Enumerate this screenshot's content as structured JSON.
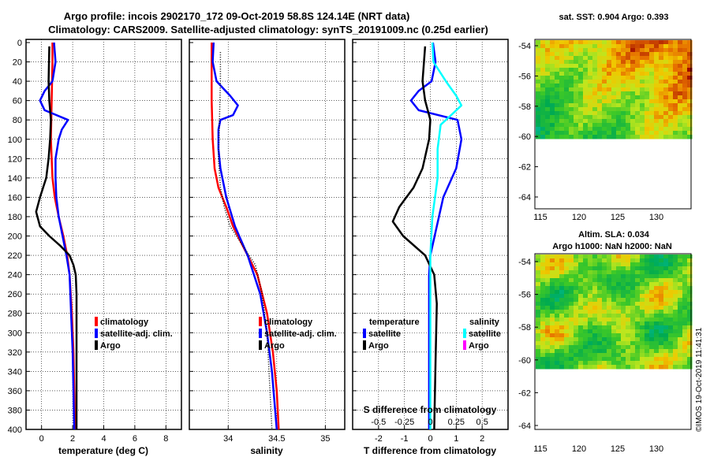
{
  "title_line1": "Argo profile: incois 2902170_172 09-Oct-2019 58.8S 124.14E (NRT data)",
  "title_line2": "Climatology: CARS2009. Satellite-adjusted climatology: synTS_20191009.nc (0.25d earlier)",
  "credit": "©IMOS 19-Oct-2019 11:41:31",
  "colors": {
    "climatology": "#ff0000",
    "satellite": "#0000ff",
    "argo": "#000000",
    "cyan": "#00ffff",
    "magenta": "#ff00ff"
  },
  "chart_data": [
    {
      "type": "line",
      "name": "temperature",
      "xlabel": "temperature (deg C)",
      "ylabel": "",
      "xlim": [
        -1,
        9
      ],
      "ylim": [
        0,
        400
      ],
      "xticks": [
        "0",
        "2",
        "4",
        "6",
        "8"
      ],
      "yticks": [
        "0",
        "20",
        "40",
        "60",
        "80",
        "100",
        "120",
        "140",
        "160",
        "180",
        "200",
        "220",
        "240",
        "260",
        "280",
        "300",
        "320",
        "340",
        "360",
        "380",
        "400"
      ],
      "legend": [
        "climatology",
        "satellite-adj. clim.",
        "Argo"
      ],
      "series": [
        {
          "name": "climatology",
          "depth": [
            0,
            20,
            60,
            100,
            120,
            140,
            160,
            180,
            200,
            220,
            240,
            280,
            320,
            360,
            400
          ],
          "values": [
            0.7,
            0.7,
            0.65,
            0.6,
            0.65,
            0.7,
            0.85,
            1.1,
            1.4,
            1.65,
            1.8,
            1.95,
            2.05,
            2.1,
            2.15
          ]
        },
        {
          "name": "satellite-adj. clim.",
          "depth": [
            0,
            20,
            40,
            50,
            60,
            70,
            80,
            90,
            100,
            120,
            140,
            160,
            180,
            200,
            220,
            240,
            280,
            320,
            360,
            400
          ],
          "values": [
            0.8,
            0.9,
            0.7,
            0.2,
            -0.1,
            0.2,
            1.7,
            1.3,
            1.1,
            0.9,
            0.9,
            0.95,
            1.1,
            1.35,
            1.6,
            1.8,
            1.9,
            2.0,
            2.05,
            2.1
          ]
        },
        {
          "name": "Argo",
          "depth": [
            4,
            40,
            60,
            80,
            100,
            120,
            140,
            160,
            175,
            190,
            200,
            210,
            220,
            230,
            240,
            260,
            300,
            340,
            400
          ],
          "values": [
            0.5,
            0.45,
            0.5,
            0.6,
            0.55,
            0.45,
            0.3,
            -0.1,
            -0.35,
            -0.1,
            0.5,
            1.2,
            1.8,
            2.05,
            2.2,
            2.25,
            2.25,
            2.25,
            2.25
          ]
        }
      ]
    },
    {
      "type": "line",
      "name": "salinity",
      "xlabel": "salinity",
      "ylabel": "",
      "xlim": [
        33.6,
        35.2
      ],
      "ylim": [
        0,
        400
      ],
      "xticks": [
        "34",
        "34.5",
        "35"
      ],
      "legend": [
        "climatology",
        "satellite-adj. clim.",
        "Argo"
      ],
      "series": [
        {
          "name": "climatology",
          "depth": [
            0,
            20,
            60,
            100,
            130,
            150,
            170,
            190,
            210,
            240,
            280,
            320,
            360,
            400
          ],
          "values": [
            33.83,
            33.83,
            33.83,
            33.84,
            33.86,
            33.9,
            33.98,
            34.05,
            34.15,
            34.3,
            34.4,
            34.46,
            34.5,
            34.52
          ]
        },
        {
          "name": "satellite-adj. clim.",
          "depth": [
            0,
            20,
            40,
            55,
            65,
            75,
            80,
            90,
            110,
            130,
            160,
            190,
            220,
            260,
            300,
            340,
            400
          ],
          "values": [
            33.85,
            33.84,
            33.88,
            34.02,
            34.1,
            34.05,
            33.92,
            33.9,
            33.9,
            33.92,
            33.98,
            34.07,
            34.2,
            34.33,
            34.4,
            34.45,
            34.5
          ]
        },
        {
          "name": "Argo",
          "depth": [
            10,
            40,
            80,
            120,
            150,
            170,
            190,
            210,
            230,
            260,
            300,
            400
          ],
          "values": [
            33.92,
            33.92,
            33.91,
            33.9,
            33.92,
            33.96,
            34.02,
            34.15,
            34.28,
            34.35,
            34.4,
            34.45
          ]
        }
      ]
    },
    {
      "type": "line",
      "name": "difference",
      "xlabel": "T difference from climatology",
      "title_bottom": "S difference from climatology",
      "xlim": [
        -3,
        3
      ],
      "ylim": [
        0,
        400
      ],
      "xticks": [
        "-2",
        "-1",
        "0",
        "1",
        "2"
      ],
      "x2ticks": [
        "-0.5",
        "-0.25",
        "0",
        "0.25",
        "0.5"
      ],
      "legend_left_title": "temperature",
      "legend_left": [
        "satellite",
        "Argo"
      ],
      "legend_right_title": "salinity",
      "legend_right": [
        "satellite",
        "Argo"
      ],
      "series": [
        {
          "name": "T satellite",
          "depth": [
            0,
            20,
            40,
            50,
            60,
            70,
            80,
            100,
            130,
            160,
            190,
            220,
            240,
            300,
            400
          ],
          "values": [
            0.1,
            0.2,
            0.05,
            -0.45,
            -0.75,
            -0.45,
            1.05,
            1.2,
            1.0,
            0.5,
            0.25,
            0.0,
            -0.05,
            -0.05,
            -0.05
          ]
        },
        {
          "name": "T Argo",
          "depth": [
            4,
            40,
            60,
            80,
            100,
            130,
            150,
            170,
            185,
            200,
            220,
            240,
            270,
            330,
            400
          ],
          "values": [
            -0.2,
            -0.3,
            -0.2,
            0.0,
            -0.05,
            -0.3,
            -0.65,
            -1.2,
            -1.45,
            -1.05,
            -0.2,
            0.15,
            0.25,
            0.2,
            0.15
          ]
        },
        {
          "name": "S satellite",
          "depth": [
            0,
            20,
            40,
            55,
            65,
            75,
            85,
            110,
            140,
            180,
            220,
            260,
            300,
            400
          ],
          "values": [
            0.02,
            0.03,
            0.15,
            0.25,
            0.3,
            0.2,
            0.1,
            0.07,
            0.07,
            0.02,
            0.0,
            0.0,
            0.0,
            0.0
          ]
        }
      ]
    }
  ],
  "maps": [
    {
      "title": "sat. SST: 0.904 Argo: 0.393",
      "title2": "",
      "yticks": [
        "-54",
        "-56",
        "-58",
        "-60",
        "-62",
        "-64"
      ],
      "xticks": [
        "115",
        "120",
        "125",
        "130"
      ]
    },
    {
      "title": "Altim. SLA: 0.034",
      "title2": "Argo h1000: NaN h2000: NaN",
      "yticks": [
        "-54",
        "-56",
        "-58",
        "-60",
        "-62",
        "-64"
      ],
      "xticks": [
        "115",
        "120",
        "125",
        "130"
      ]
    }
  ]
}
